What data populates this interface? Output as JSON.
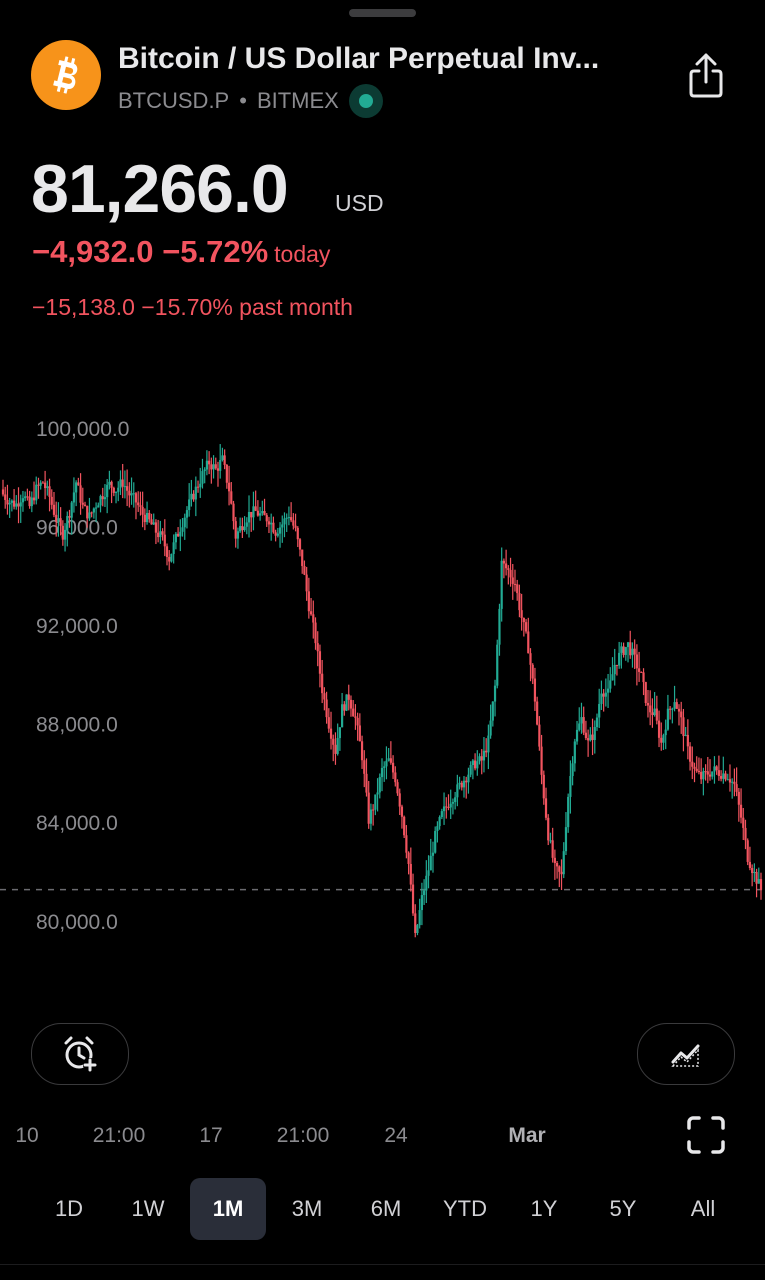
{
  "header": {
    "title": "Bitcoin / US Dollar Perpetual Inv...",
    "symbol": "BTCUSD.P",
    "separator": "•",
    "exchange": "BITMEX",
    "coin_icon": "bitcoin-icon",
    "share_icon": "share-icon",
    "status_icon": "live-status-dot-icon"
  },
  "quote": {
    "price": "81,266.0",
    "currency": "USD",
    "change_today": "−4,932.0 −5.72%",
    "today_label": "today",
    "change_month": "−15,138.0 −15.70% past month"
  },
  "colors": {
    "up": "#22ab94",
    "down": "#f2545f",
    "bitcoin": "#f7931a",
    "axis_text": "#8b8b8f"
  },
  "chart_data": {
    "type": "candlestick",
    "y_ticks": [
      "100,000.0",
      "96,000.0",
      "92,000.0",
      "88,000.0",
      "84,000.0",
      "80,000.0"
    ],
    "ylim": [
      77500,
      101000
    ],
    "x_ticks": [
      "10",
      "21:00",
      "17",
      "21:00",
      "24",
      "Mar"
    ],
    "last_price": 81266.0,
    "last_price_line": "dashed",
    "close_path": [
      [
        0,
        97300
      ],
      [
        3,
        97000
      ],
      [
        6,
        96900
      ],
      [
        9,
        97300
      ],
      [
        12,
        96800
      ],
      [
        15,
        97500
      ],
      [
        18,
        97800
      ],
      [
        21,
        97200
      ],
      [
        24,
        96300
      ],
      [
        27,
        95700
      ],
      [
        30,
        96600
      ],
      [
        33,
        97800
      ],
      [
        36,
        96800
      ],
      [
        39,
        96400
      ],
      [
        42,
        96900
      ],
      [
        45,
        97300
      ],
      [
        48,
        97700
      ],
      [
        51,
        97500
      ],
      [
        54,
        97800
      ],
      [
        57,
        97300
      ],
      [
        60,
        97000
      ],
      [
        63,
        96500
      ],
      [
        66,
        96200
      ],
      [
        69,
        95800
      ],
      [
        72,
        95500
      ],
      [
        75,
        94700
      ],
      [
        78,
        95500
      ],
      [
        81,
        96200
      ],
      [
        84,
        96900
      ],
      [
        87,
        97500
      ],
      [
        90,
        98100
      ],
      [
        93,
        98600
      ],
      [
        96,
        98300
      ],
      [
        99,
        98700
      ],
      [
        102,
        97500
      ],
      [
        105,
        95600
      ],
      [
        108,
        96100
      ],
      [
        111,
        96500
      ],
      [
        114,
        96600
      ],
      [
        117,
        96400
      ],
      [
        120,
        96300
      ],
      [
        123,
        95800
      ],
      [
        126,
        96100
      ],
      [
        129,
        96500
      ],
      [
        132,
        95800
      ],
      [
        135,
        94500
      ],
      [
        138,
        92800
      ],
      [
        141,
        91400
      ],
      [
        144,
        89400
      ],
      [
        147,
        88000
      ],
      [
        150,
        86900
      ],
      [
        153,
        88600
      ],
      [
        156,
        89100
      ],
      [
        159,
        88200
      ],
      [
        162,
        86700
      ],
      [
        165,
        84100
      ],
      [
        168,
        84900
      ],
      [
        171,
        86100
      ],
      [
        174,
        86500
      ],
      [
        177,
        85800
      ],
      [
        180,
        84300
      ],
      [
        183,
        82300
      ],
      [
        186,
        79300
      ],
      [
        189,
        80900
      ],
      [
        192,
        82100
      ],
      [
        195,
        83400
      ],
      [
        198,
        84300
      ],
      [
        201,
        84800
      ],
      [
        204,
        85200
      ],
      [
        207,
        85600
      ],
      [
        210,
        86000
      ],
      [
        213,
        86400
      ],
      [
        216,
        86500
      ],
      [
        219,
        87300
      ],
      [
        222,
        89500
      ],
      [
        225,
        94500
      ],
      [
        228,
        94200
      ],
      [
        231,
        93700
      ],
      [
        234,
        92300
      ],
      [
        237,
        91100
      ],
      [
        240,
        89000
      ],
      [
        243,
        85900
      ],
      [
        246,
        83500
      ],
      [
        249,
        82100
      ],
      [
        252,
        81800
      ],
      [
        255,
        85100
      ],
      [
        258,
        87400
      ],
      [
        261,
        88200
      ],
      [
        264,
        87200
      ],
      [
        267,
        87700
      ],
      [
        270,
        89400
      ],
      [
        273,
        89200
      ],
      [
        276,
        90400
      ],
      [
        279,
        90900
      ],
      [
        282,
        91200
      ],
      [
        285,
        90600
      ],
      [
        288,
        89900
      ],
      [
        291,
        88600
      ],
      [
        294,
        88400
      ],
      [
        297,
        87200
      ],
      [
        300,
        88400
      ],
      [
        303,
        89000
      ],
      [
        306,
        88100
      ],
      [
        309,
        86900
      ],
      [
        312,
        86100
      ],
      [
        315,
        85800
      ],
      [
        318,
        86000
      ],
      [
        321,
        86100
      ],
      [
        324,
        86000
      ],
      [
        327,
        85900
      ],
      [
        330,
        85500
      ],
      [
        333,
        84200
      ],
      [
        336,
        82600
      ],
      [
        339,
        81900
      ],
      [
        342,
        81266
      ]
    ]
  },
  "controls": {
    "alert_icon": "alarm-clock-plus-icon",
    "chart_style_icon": "area-chart-icon",
    "fullscreen_icon": "fullscreen-icon"
  },
  "ranges": [
    {
      "label": "1D",
      "active": false
    },
    {
      "label": "1W",
      "active": false
    },
    {
      "label": "1M",
      "active": true
    },
    {
      "label": "3M",
      "active": false
    },
    {
      "label": "6M",
      "active": false
    },
    {
      "label": "YTD",
      "active": false
    },
    {
      "label": "1Y",
      "active": false
    },
    {
      "label": "5Y",
      "active": false
    },
    {
      "label": "All",
      "active": false
    }
  ]
}
